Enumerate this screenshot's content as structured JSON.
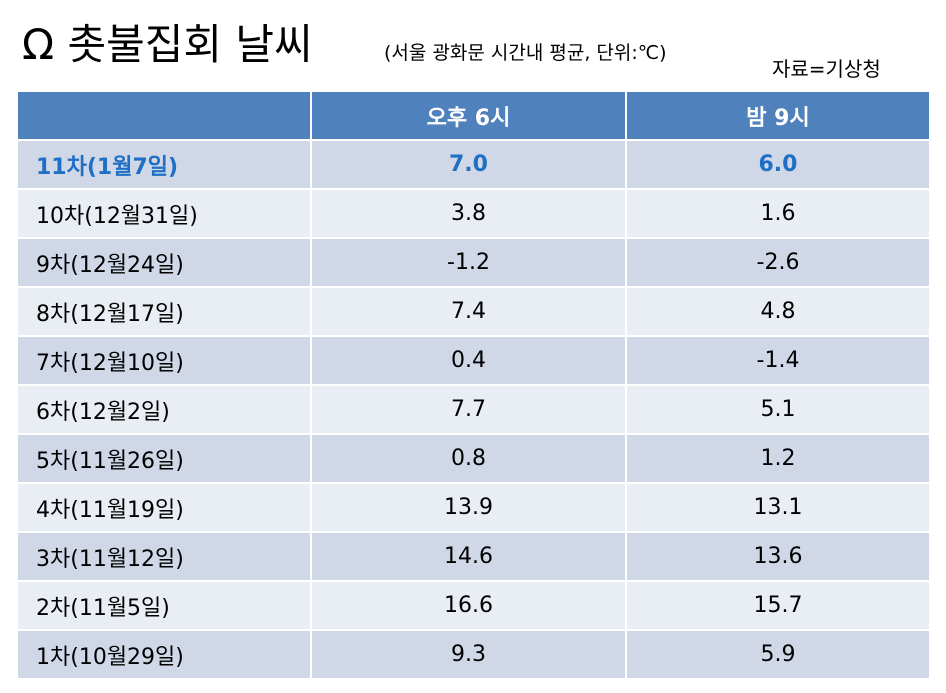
{
  "title": "Ω 촛불집회 날씨",
  "subtitle": "(서울 광화문 시간내 평균, 단위:℃)",
  "source": "자료=기상청",
  "table": {
    "headers": [
      "",
      "오후 6시",
      "밤 9시"
    ],
    "rows": [
      {
        "label": "11차(1월7일)",
        "pm6": "7.0",
        "pm9": "6.0"
      },
      {
        "label": "10차(12월31일)",
        "pm6": "3.8",
        "pm9": "1.6"
      },
      {
        "label": "9차(12월24일)",
        "pm6": "-1.2",
        "pm9": "-2.6"
      },
      {
        "label": "8차(12월17일)",
        "pm6": "7.4",
        "pm9": "4.8"
      },
      {
        "label": "7차(12월10일)",
        "pm6": "0.4",
        "pm9": "-1.4"
      },
      {
        "label": "6차(12월2일)",
        "pm6": "7.7",
        "pm9": "5.1"
      },
      {
        "label": "5차(11월26일)",
        "pm6": "0.8",
        "pm9": "1.2"
      },
      {
        "label": "4차(11월19일)",
        "pm6": "13.9",
        "pm9": "13.1"
      },
      {
        "label": "3차(11월12일)",
        "pm6": "14.6",
        "pm9": "13.6"
      },
      {
        "label": "2차(11월5일)",
        "pm6": "16.6",
        "pm9": "15.7"
      },
      {
        "label": "1차(10월29일)",
        "pm6": "9.3",
        "pm9": "5.9"
      }
    ]
  },
  "colors": {
    "header_bg": "#4f81bd",
    "row_dark": "#d0d8e8",
    "row_light": "#e9edf4",
    "highlight_text": "#1f6fc5"
  }
}
